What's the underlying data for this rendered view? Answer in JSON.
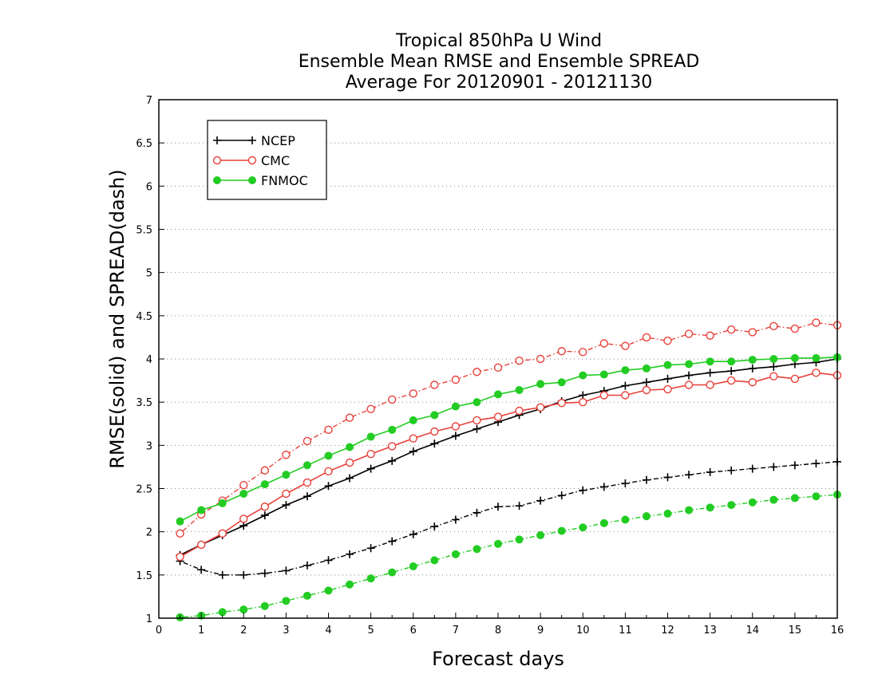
{
  "chart_data": {
    "type": "line",
    "title": [
      "Tropical 850hPa U Wind",
      "Ensemble Mean RMSE and Ensemble SPREAD",
      "Average For 20120901 - 20121130"
    ],
    "xlabel": "Forecast days",
    "ylabel": "RMSE(solid) and SPREAD(dash)",
    "xlim": [
      0,
      16
    ],
    "ylim": [
      1,
      7
    ],
    "xticks": [
      0,
      1,
      2,
      3,
      4,
      5,
      6,
      7,
      8,
      9,
      10,
      11,
      12,
      13,
      14,
      15,
      16
    ],
    "yticks": [
      1,
      1.5,
      2,
      2.5,
      3,
      3.5,
      4,
      4.5,
      5,
      5.5,
      6,
      6.5,
      7
    ],
    "grid": "horizontal dotted",
    "legend_position": "top-left",
    "x": [
      0.5,
      1,
      1.5,
      2,
      2.5,
      3,
      3.5,
      4,
      4.5,
      5,
      5.5,
      6,
      6.5,
      7,
      7.5,
      8,
      8.5,
      9,
      9.5,
      10,
      10.5,
      11,
      11.5,
      12,
      12.5,
      13,
      13.5,
      14,
      14.5,
      15,
      15.5,
      16
    ],
    "series": [
      {
        "name": "NCEP",
        "color": "#000000",
        "marker": "plus",
        "rmse": [
          1.73,
          1.85,
          1.96,
          2.07,
          2.19,
          2.31,
          2.41,
          2.53,
          2.62,
          2.73,
          2.82,
          2.93,
          3.02,
          3.11,
          3.19,
          3.27,
          3.35,
          3.42,
          3.51,
          3.58,
          3.63,
          3.69,
          3.73,
          3.77,
          3.81,
          3.84,
          3.86,
          3.89,
          3.91,
          3.94,
          3.96,
          4.0
        ],
        "spread": [
          1.66,
          1.56,
          1.5,
          1.5,
          1.52,
          1.55,
          1.61,
          1.67,
          1.74,
          1.81,
          1.89,
          1.97,
          2.06,
          2.14,
          2.22,
          2.29,
          2.3,
          2.36,
          2.42,
          2.48,
          2.52,
          2.56,
          2.6,
          2.63,
          2.66,
          2.69,
          2.71,
          2.73,
          2.75,
          2.77,
          2.79,
          2.81
        ]
      },
      {
        "name": "CMC",
        "color": "#e8403a",
        "marker": "open-circle",
        "rmse": [
          1.71,
          1.85,
          1.98,
          2.15,
          2.29,
          2.44,
          2.57,
          2.7,
          2.8,
          2.9,
          2.99,
          3.08,
          3.16,
          3.22,
          3.29,
          3.33,
          3.4,
          3.44,
          3.49,
          3.5,
          3.58,
          3.58,
          3.64,
          3.65,
          3.7,
          3.7,
          3.75,
          3.73,
          3.8,
          3.77,
          3.84,
          3.81
        ],
        "spread": [
          1.98,
          2.2,
          2.36,
          2.54,
          2.71,
          2.89,
          3.05,
          3.18,
          3.32,
          3.42,
          3.53,
          3.6,
          3.7,
          3.76,
          3.85,
          3.9,
          3.98,
          4.0,
          4.09,
          4.08,
          4.18,
          4.15,
          4.25,
          4.21,
          4.29,
          4.27,
          4.34,
          4.31,
          4.38,
          4.35,
          4.42,
          4.39
        ]
      },
      {
        "name": "FNMOC",
        "color": "#22cc22",
        "marker": "filled-circle",
        "rmse": [
          2.12,
          2.25,
          2.33,
          2.44,
          2.55,
          2.66,
          2.77,
          2.88,
          2.98,
          3.1,
          3.18,
          3.29,
          3.35,
          3.45,
          3.5,
          3.59,
          3.64,
          3.71,
          3.73,
          3.81,
          3.82,
          3.87,
          3.89,
          3.93,
          3.94,
          3.97,
          3.97,
          3.99,
          4.0,
          4.01,
          4.01,
          4.02
        ],
        "spread": [
          1.01,
          1.03,
          1.07,
          1.1,
          1.14,
          1.2,
          1.26,
          1.32,
          1.39,
          1.46,
          1.53,
          1.6,
          1.67,
          1.74,
          1.8,
          1.86,
          1.91,
          1.96,
          2.01,
          2.05,
          2.1,
          2.14,
          2.18,
          2.21,
          2.25,
          2.28,
          2.31,
          2.34,
          2.37,
          2.39,
          2.41,
          2.43
        ]
      }
    ]
  }
}
